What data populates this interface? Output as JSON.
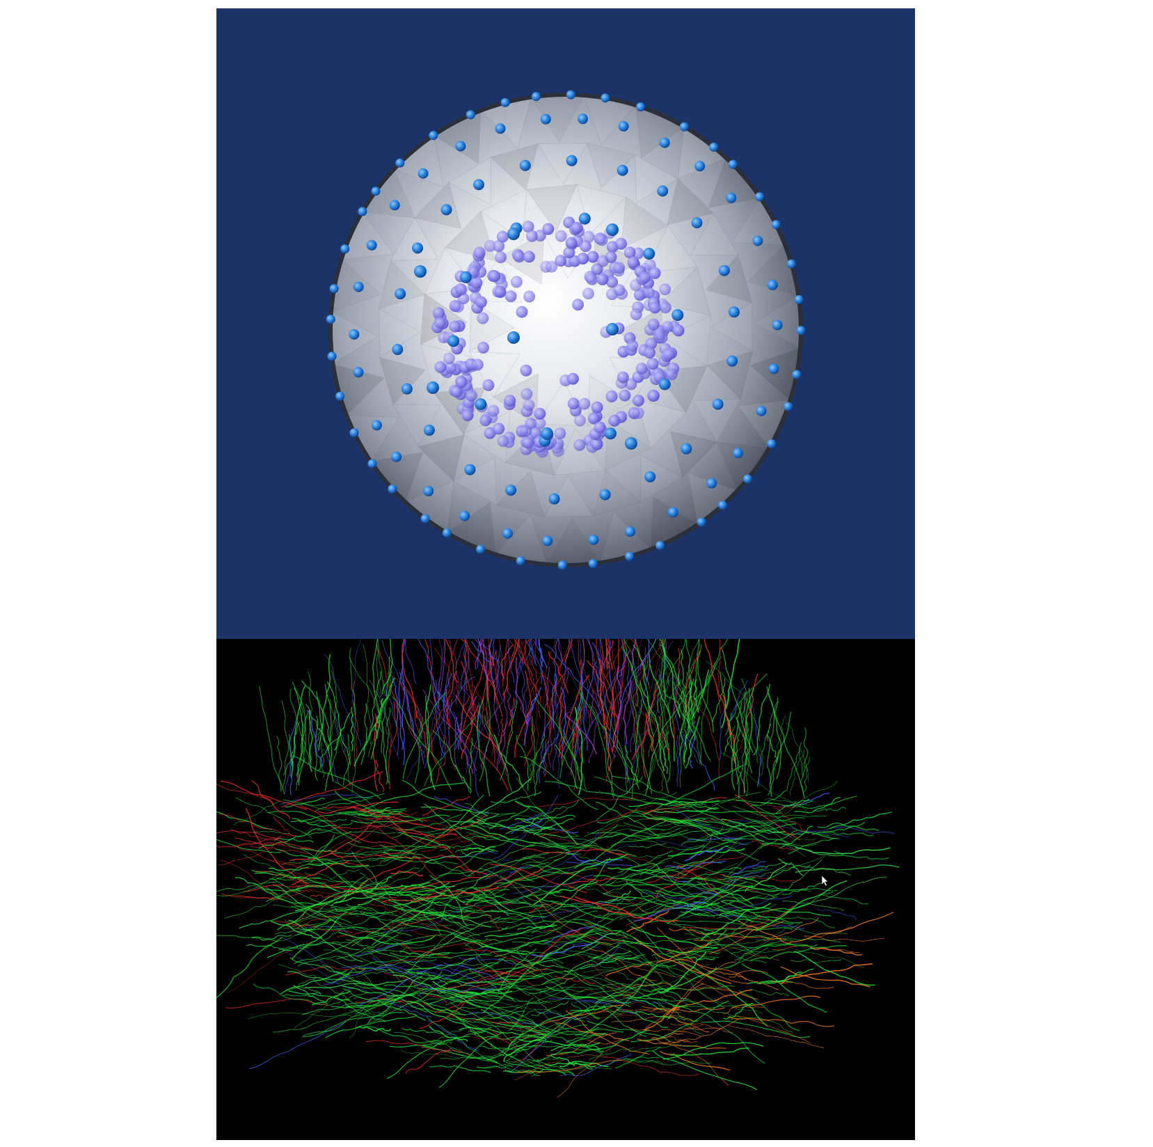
{
  "figure": {
    "panels": [
      {
        "id": "gradient-sphere",
        "description_icon": "sphere-icon",
        "background_color": "#1b3366",
        "shell_color": "#c9ced8",
        "outer_point_color": "#2f86e0",
        "inner_point_color": "#8a86ee"
      },
      {
        "id": "tractography",
        "description_icon": "brain-fibers-icon",
        "background_color": "#000000",
        "fiber_colors": [
          "#22e03a",
          "#3ad84a",
          "#e8302a",
          "#4a5cf0",
          "#c23ad8",
          "#f07a1e"
        ]
      }
    ],
    "cursor_icon": "mouse-pointer-icon"
  }
}
